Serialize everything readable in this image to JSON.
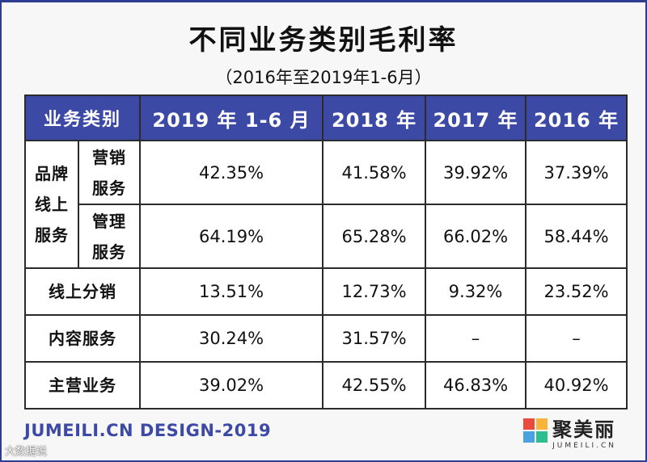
{
  "title": "不同业务类别毛利率",
  "subtitle": "（2016年至2019年1-6月）",
  "table": {
    "headers": [
      "业务类别",
      "2019 年 1-6 月",
      "2018 年",
      "2017 年",
      "2016 年"
    ],
    "group_label_line1": "品牌",
    "group_label_line2": "线上",
    "group_label_line3": "服务",
    "rows": [
      {
        "sub1": "营销",
        "sub2": "服务",
        "values": [
          "42.35%",
          "41.58%",
          "39.92%",
          "37.39%"
        ]
      },
      {
        "sub1": "管理",
        "sub2": "服务",
        "values": [
          "64.19%",
          "65.28%",
          "66.02%",
          "58.44%"
        ]
      },
      {
        "label": "线上分销",
        "values": [
          "13.51%",
          "12.73%",
          "9.32%",
          "23.52%"
        ]
      },
      {
        "label": "内容服务",
        "values": [
          "30.24%",
          "31.57%",
          "–",
          "–"
        ]
      },
      {
        "label": "主营业务",
        "values": [
          "39.02%",
          "42.55%",
          "46.83%",
          "40.92%"
        ]
      }
    ]
  },
  "footer": {
    "credit": "JUMEILI.CN DESIGN-2019",
    "logo_cn": "聚美丽",
    "logo_en": "JUMEILI.CN",
    "watermark": "大数据说"
  },
  "colors": {
    "header_bg": "#3d4aa5",
    "footer_text": "#3d4aa5",
    "logo_colors": [
      "#e94b3c",
      "#f6b43a",
      "#4aa3df",
      "#2ebf91"
    ]
  }
}
